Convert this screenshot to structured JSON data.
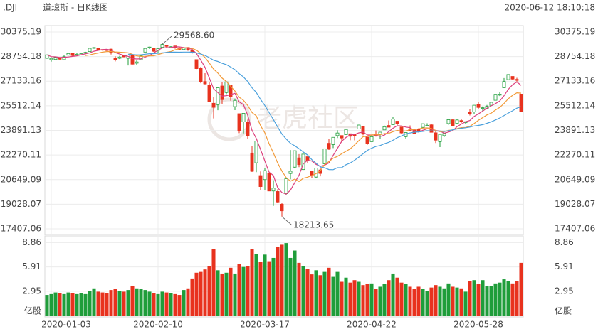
{
  "chart_data": {
    "type": "candlestick",
    "symbol": ".DJI",
    "title": "道琼斯 - 日K线图",
    "timestamp": "2020-06-12 18:10:18",
    "watermark": "老虎社区",
    "up_color": "#1f9d3a",
    "down_color": "#e8321e",
    "ylim": [
      17407.06,
      30375.19
    ],
    "yticks": [
      17407.06,
      19028.07,
      20649.09,
      22270.11,
      23891.13,
      25512.14,
      27133.16,
      28754.18,
      30375.19
    ],
    "grid": true,
    "categories": [
      null,
      "2020-01-03",
      null,
      null,
      null,
      null,
      null,
      null,
      null,
      null,
      null,
      null,
      null,
      null,
      null,
      null,
      null,
      null,
      null,
      null,
      null,
      null,
      null,
      null,
      null,
      null,
      "2020-02-10",
      null,
      null,
      null,
      null,
      null,
      null,
      null,
      null,
      null,
      null,
      null,
      null,
      null,
      null,
      null,
      null,
      null,
      null,
      null,
      null,
      null,
      null,
      null,
      null,
      "2020-03-17",
      null,
      null,
      null,
      null,
      null,
      null,
      null,
      null,
      null,
      null,
      null,
      null,
      null,
      null,
      null,
      null,
      null,
      null,
      null,
      null,
      null,
      null,
      null,
      null,
      "2020-04-22",
      null,
      null,
      null,
      null,
      null,
      null,
      null,
      null,
      null,
      null,
      null,
      null,
      null,
      null,
      null,
      null,
      null,
      null,
      null,
      null,
      null,
      null,
      null,
      null,
      "2020-05-28",
      null,
      null,
      null,
      null,
      null,
      null,
      null,
      null,
      null,
      null
    ],
    "open": [
      28638,
      28553,
      28565,
      28639,
      28556,
      28844,
      28991,
      28877,
      28875,
      29000,
      29080,
      29342,
      29305,
      29220,
      29198,
      29243,
      28672,
      28642,
      28818,
      28641,
      28813,
      28319,
      28551,
      29049,
      29365,
      29286,
      29164,
      29365,
      29476,
      29390,
      29453,
      29279,
      29219,
      29357,
      29158,
      28555,
      27987,
      27110,
      26867,
      25679,
      25591,
      26817,
      26383,
      26858,
      25457,
      24992,
      24453,
      24453,
      22400,
      21755,
      20916,
      20650,
      21058,
      19900,
      19867,
      19028,
      19722,
      21051,
      21468,
      22081,
      21309,
      22157,
      21228,
      20819,
      21285,
      21693,
      23044,
      22955,
      23549,
      23552,
      23606,
      23669,
      23615,
      23987,
      24149,
      23452,
      23150,
      23657,
      23627,
      23924,
      24214,
      24264,
      24500,
      24116,
      23478,
      23939,
      23912,
      23961,
      24092,
      24174,
      24255,
      23733,
      23148,
      23547,
      24339,
      24590,
      24358,
      24538,
      24398,
      25081,
      25103,
      25611,
      25362,
      25343,
      25542,
      25876,
      26216,
      26701,
      27233,
      27447,
      27252,
      26283
    ],
    "high": [
      28873,
      28708,
      28709,
      28713,
      28866,
      28973,
      29010,
      28975,
      28959,
      29069,
      29299,
      29373,
      29330,
      29227,
      29252,
      29275,
      28769,
      28799,
      28876,
      28879,
      28897,
      28494,
      28899,
      29308,
      29408,
      29286,
      29277,
      29568.6,
      29535,
      29441,
      29463,
      29380,
      29370,
      29364,
      29158,
      28555,
      28078,
      27660,
      27103,
      26113,
      26706,
      27085,
      27102,
      26859,
      25994,
      24992,
      25019,
      24600,
      22837,
      23186,
      21188,
      21418,
      21067,
      20608,
      20014,
      19121,
      20705,
      22595,
      22552,
      22327,
      22328,
      22157,
      21228,
      21413,
      21447,
      22680,
      23328,
      23434,
      23902,
      23559,
      23981,
      23669,
      23665,
      24265,
      24149,
      23452,
      23566,
      23888,
      23788,
      24207,
      24547,
      24764,
      24500,
      24116,
      23761,
      24219,
      24010,
      24031,
      24332,
      24362,
      24300,
      23875,
      23630,
      23700,
      24601,
      24613,
      24609,
      24617,
      24465,
      25297,
      25559,
      25759,
      25472,
      25565,
      25742,
      26270,
      26394,
      27338,
      27580,
      27447,
      27355,
      26283
    ],
    "low": [
      28627,
      28418,
      28565,
      28545,
      28501,
      28827,
      28783,
      28823,
      28844,
      28908,
      29075,
      29269,
      29166,
      29140,
      29122,
      28894,
      28441,
      28589,
      28706,
      28169,
      28234,
      28196,
      28551,
      29049,
      29253,
      29057,
      29015,
      29365,
      29367,
      29299,
      29271,
      29171,
      29190,
      29127,
      28951,
      27928,
      26998,
      26914,
      25764,
      24681,
      25217,
      25649,
      26286,
      25846,
      25226,
      23707,
      23690,
      23328,
      21154,
      21139,
      19943,
      19941,
      19898,
      18917,
      19122,
      18213.65,
      19649,
      20676,
      21427,
      21469,
      21286,
      21722,
      20736,
      20735,
      20863,
      21693,
      22602,
      22725,
      23390,
      23098,
      23606,
      23243,
      23237,
      23987,
      23568,
      22942,
      23150,
      23483,
      23325,
      23924,
      24101,
      24264,
      24240,
      23645,
      23361,
      23842,
      23640,
      23749,
      24043,
      24153,
      23761,
      23060,
      22790,
      23464,
      24268,
      24200,
      24349,
      24370,
      24316,
      24875,
      24965,
      25289,
      25136,
      25280,
      25510,
      25875,
      26156,
      26701,
      27232,
      27230,
      27080,
      25128
    ],
    "close": [
      28869,
      28634,
      28703,
      28584,
      28745,
      28957,
      28824,
      28907,
      28940,
      29030,
      29298,
      29348,
      29196,
      29186,
      29161,
      28990,
      28536,
      28723,
      28734,
      28859,
      28256,
      28400,
      28808,
      29291,
      29380,
      29103,
      29276,
      29551,
      29424,
      29398,
      29348,
      29232,
      29348,
      29219,
      28992,
      27961,
      27082,
      26957,
      25767,
      25409,
      26703,
      25917,
      27091,
      26121,
      25865,
      23851,
      25018,
      23553,
      21200,
      23186,
      20189,
      21237,
      19899,
      20087,
      19174,
      18592,
      20704,
      21201,
      22552,
      21636,
      22328,
      21917,
      20943,
      21413,
      21053,
      22680,
      22654,
      23434,
      23719,
      23390,
      23950,
      23504,
      23538,
      24242,
      23650,
      23019,
      23475,
      23515,
      23775,
      24134,
      24101,
      24634,
      24346,
      23724,
      23750,
      23883,
      23664,
      23875,
      24331,
      24222,
      23765,
      23248,
      23625,
      23685,
      24597,
      24207,
      24576,
      24474,
      24465,
      24995,
      25548,
      25401,
      25383,
      25475,
      25742,
      26270,
      26282,
      27111,
      27572,
      27272,
      27190,
      25128
    ],
    "series": [
      {
        "color": "#dc3f7c",
        "values": [
          28869,
          28752,
          28735,
          28698,
          28707,
          28725,
          28763,
          28803,
          28875,
          28932,
          29000,
          29105,
          29162,
          29212,
          29238,
          29176,
          29014,
          28919,
          28829,
          28768,
          28622,
          28594,
          28611,
          28723,
          28827,
          28996,
          29172,
          29320,
          29347,
          29350,
          29399,
          29391,
          29350,
          29309,
          29228,
          28950,
          28520,
          28042,
          27352,
          26635,
          26384,
          26151,
          26177,
          26248,
          26339,
          25769,
          25589,
          24882,
          23897,
          23362,
          22629,
          21873,
          21142,
          20920,
          20117,
          19798,
          19691,
          19952,
          20445,
          20937,
          21684,
          21927,
          21875,
          21647,
          21531,
          21601,
          21749,
          22247,
          22708,
          23175,
          23429,
          23599,
          23620,
          23725,
          23777,
          23591,
          23585,
          23580,
          23487,
          23584,
          23800,
          24032,
          24198,
          24188,
          24111,
          24067,
          23873,
          23779,
          23901,
          23995,
          23971,
          23888,
          23838,
          23709,
          23784,
          23872,
          24138,
          24308,
          24464,
          24543,
          24812,
          24977,
          25158,
          25360,
          25510,
          25654,
          25830,
          26176,
          26595,
          26901,
          27085,
          26855
        ]
      },
      {
        "color": "#f29a38",
        "values": [
          null,
          null,
          null,
          null,
          null,
          null,
          null,
          null,
          null,
          28820,
          28863,
          28934,
          28983,
          29044,
          29085,
          29088,
          29060,
          29041,
          29021,
          29003,
          28899,
          28804,
          28765,
          28776,
          28798,
          28809,
          28883,
          28966,
          29035,
          29089,
          29198,
          29282,
          29335,
          29328,
          29289,
          29175,
          28956,
          28696,
          28331,
          27932,
          27667,
          27336,
          27110,
          26800,
          26487,
          26077,
          25870,
          25530,
          25073,
          24851,
          24199,
          23731,
          23012,
          22409,
          21740,
          21214,
          20782,
          20547,
          20683,
          20527,
          20741,
          20809,
          20914,
          21046,
          21234,
          21643,
          21838,
          22061,
          22178,
          22353,
          22515,
          22674,
          22934,
          23217,
          23476,
          23510,
          23592,
          23600,
          23606,
          23681,
          23696,
          23809,
          23889,
          23838,
          23848,
          23934,
          23953,
          23989,
          24045,
          24053,
          24019,
          23881,
          23809,
          23805,
          23890,
          23922,
          24013,
          24073,
          24087,
          24164,
          24342,
          24558,
          24733,
          24912,
          25027,
          25233,
          25404,
          25667,
          25978,
          26206,
          26370,
          26343
        ]
      },
      {
        "color": "#4aa0dc",
        "values": [
          null,
          null,
          null,
          null,
          null,
          null,
          null,
          null,
          null,
          null,
          null,
          null,
          null,
          null,
          null,
          null,
          null,
          null,
          null,
          28912,
          28881,
          28869,
          28874,
          28910,
          28942,
          28949,
          28972,
          29004,
          29028,
          29046,
          29049,
          29043,
          29050,
          29052,
          29044,
          28992,
          28920,
          28831,
          28683,
          28511,
          28433,
          28309,
          28223,
          28064,
          27888,
          27626,
          27413,
          27113,
          26702,
          26392,
          25933,
          25534,
          25061,
          24605,
          24114,
          23646,
          23326,
          23039,
          22878,
          22689,
          22470,
          22270,
          21963,
          21728,
          21487,
          21429,
          21310,
          21304,
          21431,
          21440,
          21628,
          21742,
          21924,
          22132,
          22355,
          22577,
          22715,
          22831,
          22892,
          23017,
          23106,
          23242,
          23412,
          23528,
          23662,
          23722,
          23773,
          23795,
          23826,
          23867,
          23858,
          23845,
          23849,
          23822,
          23869,
          23928,
          23983,
          24031,
          24066,
          24109,
          24181,
          24220,
          24271,
          24359,
          24459,
          24578,
          24709,
          24870,
          25033,
          25185,
          25356,
          25451
        ]
      }
    ],
    "annotations": [
      {
        "label": "29568.60",
        "value": 29568.6,
        "field": "high"
      },
      {
        "label": "18213.65",
        "value": 18213.65,
        "field": "low"
      }
    ],
    "volume": {
      "unit": "亿股",
      "ylim": [
        0,
        9.5
      ],
      "yticks": [
        2.95,
        5.91,
        8.86
      ],
      "values": [
        2.5,
        2.6,
        2.8,
        2.7,
        2.6,
        2.8,
        2.7,
        2.6,
        2.7,
        2.6,
        3.0,
        3.3,
        2.9,
        2.8,
        2.7,
        3.1,
        3.2,
        3.0,
        2.9,
        3.1,
        3.6,
        3.3,
        3.2,
        3.1,
        2.9,
        2.7,
        2.6,
        2.9,
        2.8,
        2.7,
        2.6,
        2.5,
        3.1,
        3.3,
        4.5,
        5.2,
        5.3,
        5.6,
        6.0,
        8.1,
        5.5,
        5.1,
        5.2,
        5.8,
        5.1,
        6.3,
        5.9,
        6.0,
        8.1,
        7.5,
        6.5,
        7.4,
        6.6,
        7.0,
        8.3,
        8.6,
        8.8,
        7.0,
        7.9,
        6.4,
        6.0,
        5.7,
        5.0,
        5.5,
        4.9,
        5.3,
        5.8,
        4.7,
        5.3,
        4.1,
        4.6,
        4.0,
        4.3,
        4.1,
        3.7,
        3.8,
        3.9,
        3.2,
        3.5,
        3.8,
        4.3,
        5.1,
        4.6,
        4.0,
        3.8,
        3.5,
        3.2,
        3.5,
        3.2,
        3.0,
        3.4,
        3.7,
        3.5,
        3.3,
        3.9,
        3.5,
        3.4,
        3.3,
        2.9,
        4.2,
        4.3,
        3.8,
        4.3,
        3.6,
        3.6,
        3.9,
        4.0,
        4.4,
        4.2,
        3.9,
        4.2,
        6.4
      ]
    }
  }
}
